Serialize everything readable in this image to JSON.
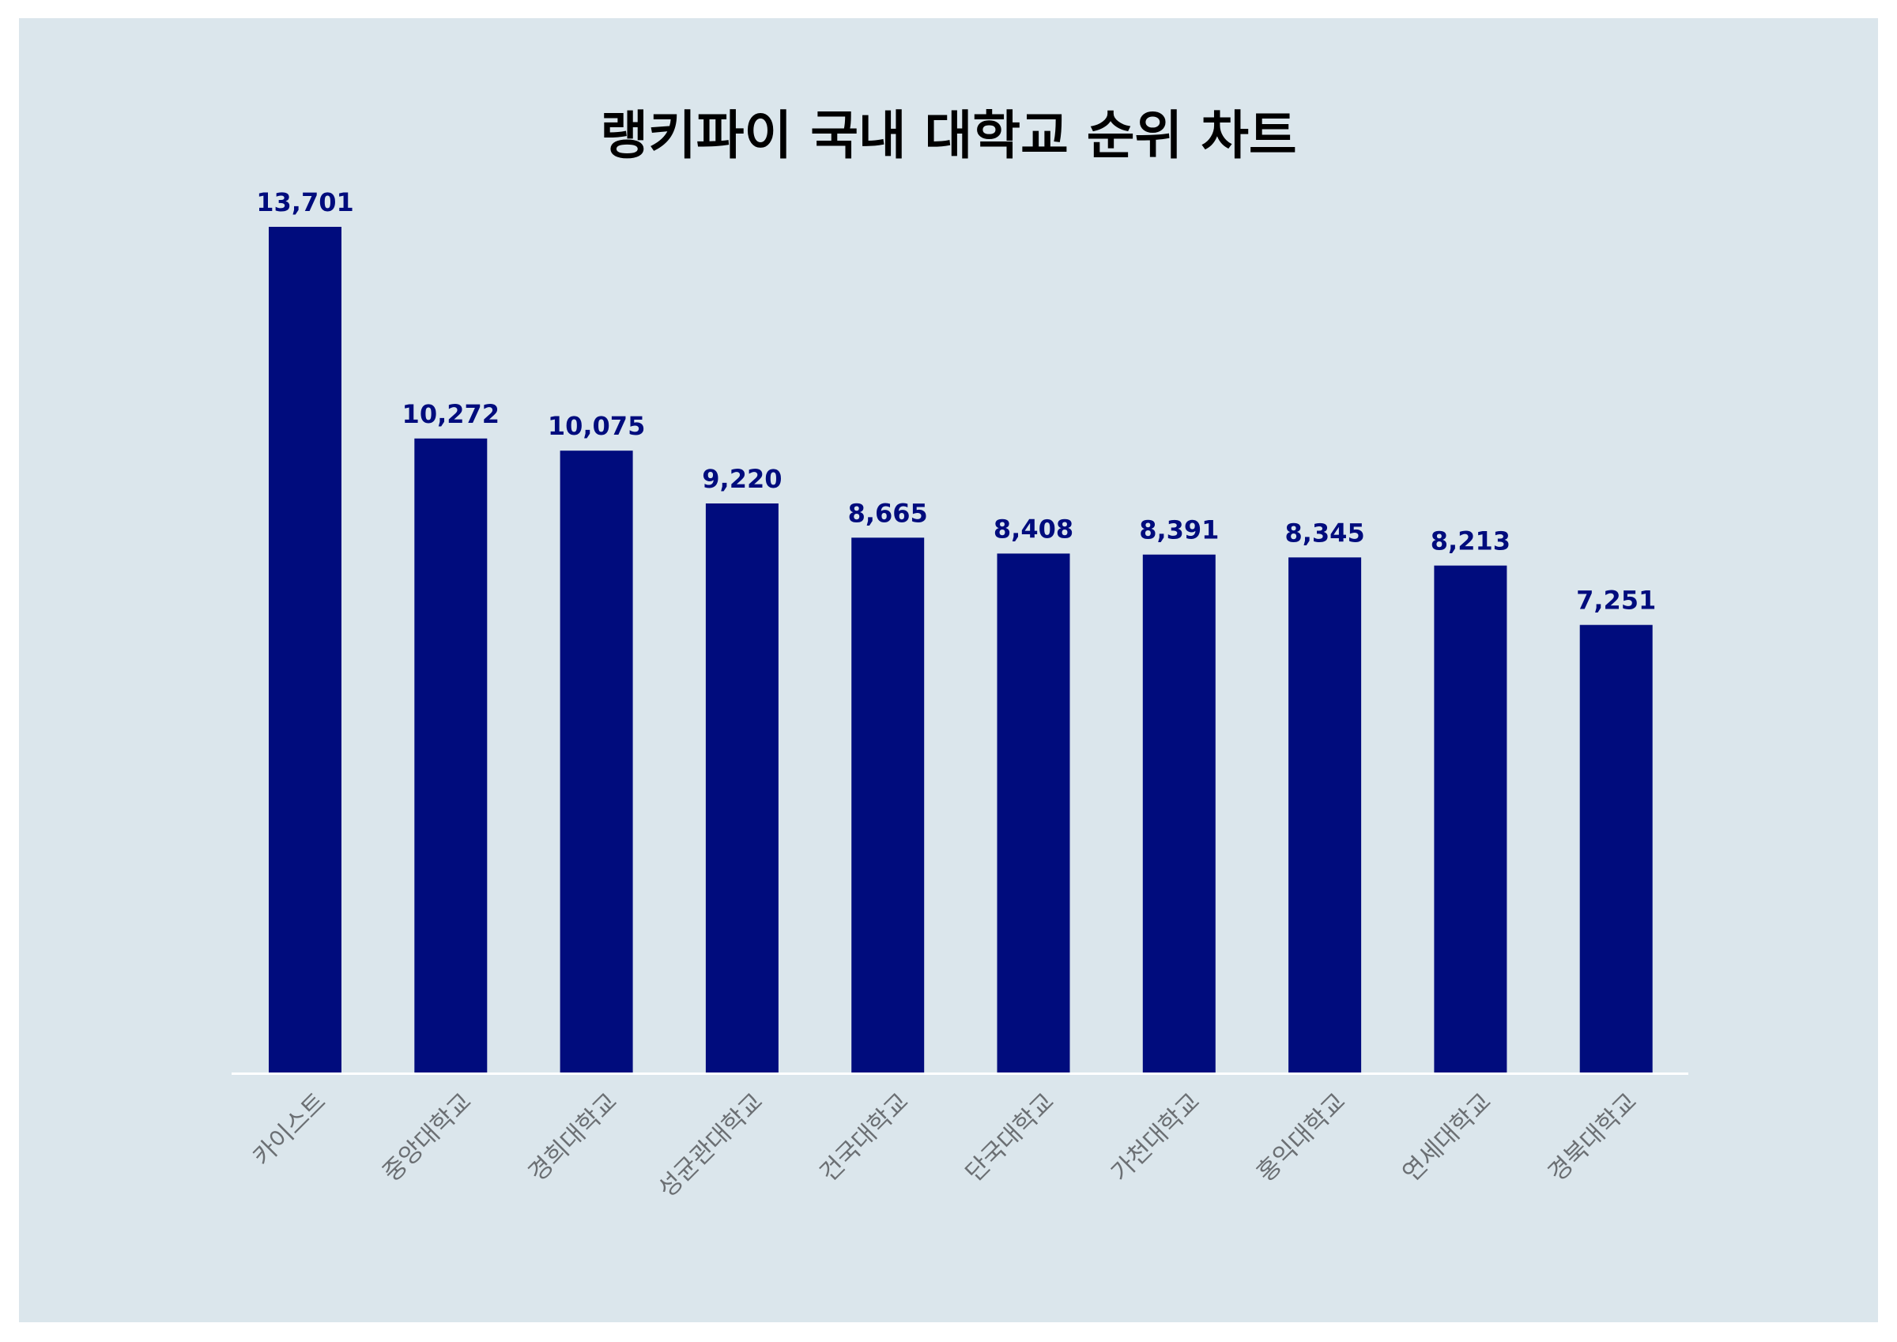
{
  "chart_data": {
    "type": "bar",
    "title": "랭키파이 국내 대학교 순위 차트",
    "categories": [
      "카이스트",
      "중앙대학교",
      "경희대학교",
      "성균관대학교",
      "건국대학교",
      "단국대학교",
      "가천대학교",
      "홍익대학교",
      "연세대학교",
      "경북대학교"
    ],
    "values": [
      13701,
      10272,
      10075,
      9220,
      8665,
      8408,
      8391,
      8345,
      8213,
      7251
    ],
    "value_labels": [
      "13,701",
      "10,272",
      "10,075",
      "9,220",
      "8,665",
      "8,408",
      "8,391",
      "8,345",
      "8,213",
      "7,251"
    ],
    "ylim": [
      0,
      13701
    ],
    "grid": false,
    "legend": "none",
    "colors": {
      "bar": "#000c7d",
      "value_label": "#000c7d",
      "tick_label": "#6b6f73",
      "background": "#dbe6ec",
      "axis": "#ffffff"
    }
  }
}
